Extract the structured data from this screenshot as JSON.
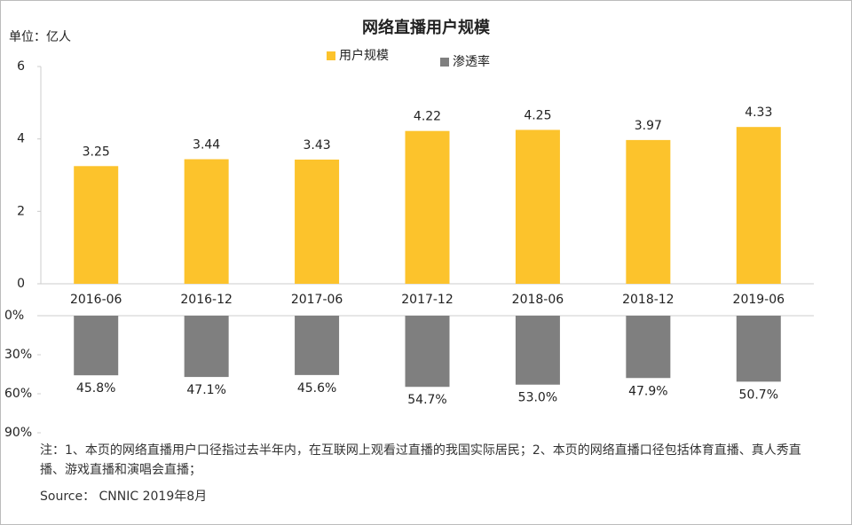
{
  "chart_data": [
    {
      "type": "bar",
      "title": "网络直播用户规模",
      "unit": "单位：亿人",
      "categories": [
        "2016-06",
        "2016-12",
        "2017-06",
        "2017-12",
        "2018-06",
        "2018-12",
        "2019-06"
      ],
      "series": [
        {
          "name": "用户规模",
          "color": "#fcc32c",
          "values": [
            3.25,
            3.44,
            3.43,
            4.22,
            4.25,
            3.97,
            4.33
          ]
        }
      ],
      "ylim": [
        0,
        6
      ],
      "yticks": [
        0,
        2,
        4,
        6
      ]
    },
    {
      "type": "bar",
      "inverted": true,
      "series": [
        {
          "name": "渗透率",
          "color": "#7f7f7f",
          "values": [
            45.8,
            47.1,
            45.6,
            54.7,
            53.0,
            47.9,
            50.7
          ],
          "value_labels": [
            "45.8%",
            "47.1%",
            "45.6%",
            "54.7%",
            "53.0%",
            "47.9%",
            "50.7%"
          ]
        }
      ],
      "ylim": [
        0,
        90
      ],
      "yticks": [
        {
          "value": 0,
          "label": "0%"
        },
        {
          "value": 30,
          "label": "30%"
        },
        {
          "value": 60,
          "label": "60%"
        },
        {
          "value": 90,
          "label": "90%"
        }
      ]
    }
  ],
  "notes": {
    "text": "注：1、本页的网络直播用户口径指过去半年内，在互联网上观看过直播的我国实际居民；2、本页的网络直播口径包括体育直播、真人秀直播、游戏直播和演唱会直播；",
    "source": "Source： CNNIC 2019年8月"
  }
}
